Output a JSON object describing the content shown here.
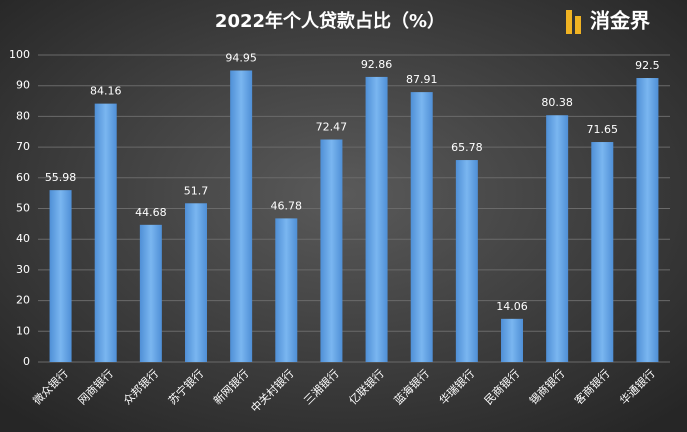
{
  "chart_data": {
    "type": "bar",
    "title": "2022年个人贷款占比（%）",
    "logo": "消金界",
    "categories": [
      "微众银行",
      "网商银行",
      "众邦银行",
      "苏宁银行",
      "新网银行",
      "中关村银行",
      "三湘银行",
      "亿联银行",
      "蓝海银行",
      "华瑞银行",
      "民商银行",
      "锡商银行",
      "客商银行",
      "华通银行"
    ],
    "values": [
      55.98,
      84.16,
      44.68,
      51.7,
      94.95,
      46.78,
      72.47,
      92.86,
      87.91,
      65.78,
      14.06,
      80.38,
      71.65,
      92.5
    ],
    "color": "#6aa6e6",
    "ylim": [
      0,
      100
    ],
    "yticks": [
      0,
      10,
      20,
      30,
      40,
      50,
      60,
      70,
      80,
      90,
      100
    ],
    "grid": true
  }
}
